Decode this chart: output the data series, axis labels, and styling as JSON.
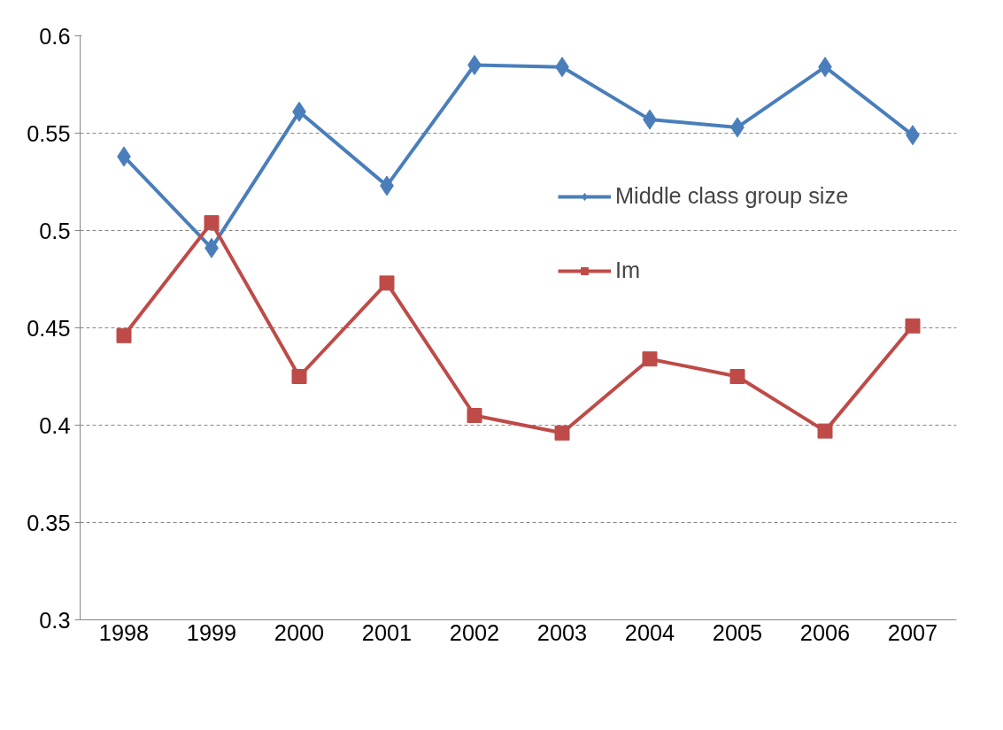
{
  "chart_data": {
    "type": "line",
    "categories": [
      "1998",
      "1999",
      "2000",
      "2001",
      "2002",
      "2003",
      "2004",
      "2005",
      "2006",
      "2007"
    ],
    "series": [
      {
        "name": "Middle class group size",
        "color": "#4a7ebb",
        "marker": "diamond",
        "values": [
          0.538,
          0.491,
          0.561,
          0.523,
          0.585,
          0.584,
          0.557,
          0.553,
          0.584,
          0.549
        ]
      },
      {
        "name": "Im",
        "color": "#be4b48",
        "marker": "square",
        "values": [
          0.446,
          0.504,
          0.425,
          0.473,
          0.405,
          0.396,
          0.434,
          0.425,
          0.397,
          0.451
        ]
      }
    ],
    "ylim": [
      0.3,
      0.6
    ],
    "yticks": [
      0.3,
      0.35,
      0.4,
      0.45,
      0.5,
      0.55,
      0.6
    ],
    "grid": "y",
    "legend": "right",
    "line_style": "solid"
  }
}
